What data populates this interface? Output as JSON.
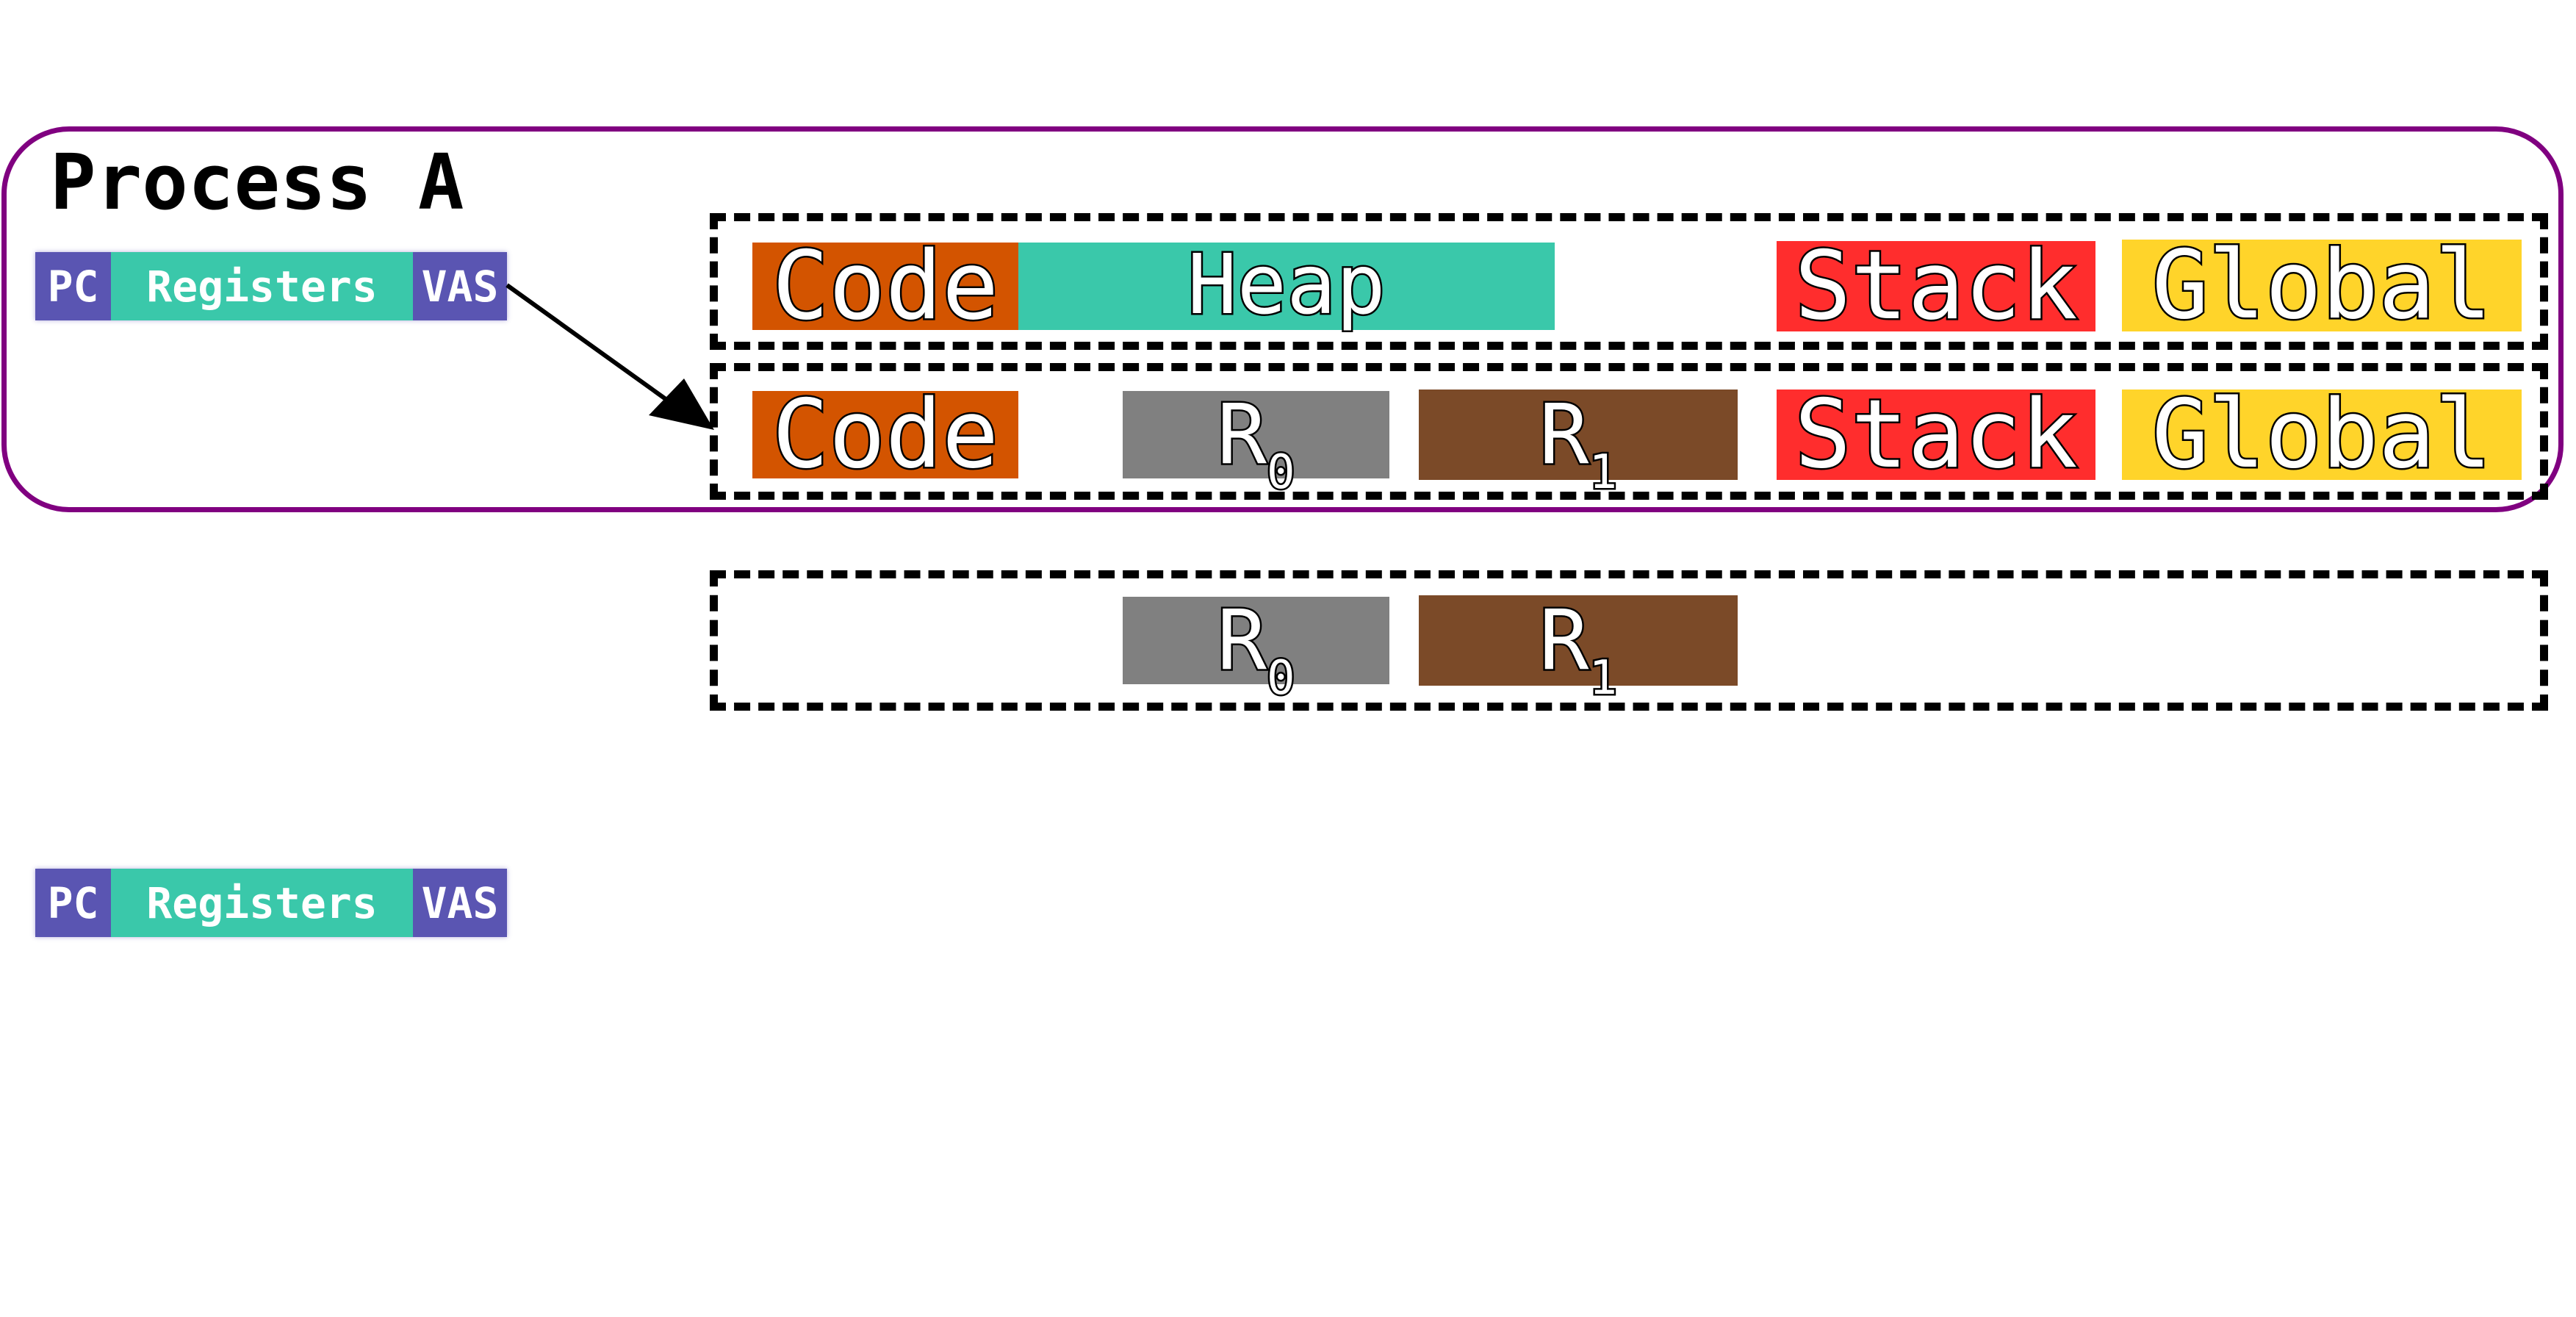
{
  "process": {
    "title": "Process A"
  },
  "context_labels": {
    "pc": "PC",
    "registers": "Registers",
    "vas": "VAS"
  },
  "rows": {
    "row1": {
      "code": "Code",
      "heap": "Heap",
      "stack": "Stack",
      "global": "Global"
    },
    "row2": {
      "code": "Code",
      "r0": {
        "base": "R",
        "sub": "0"
      },
      "r1": {
        "base": "R",
        "sub": "1"
      },
      "stack": "Stack",
      "global": "Global"
    },
    "row3": {
      "r0": {
        "base": "R",
        "sub": "0"
      },
      "r1": {
        "base": "R",
        "sub": "1"
      }
    }
  },
  "colors": {
    "process_border": "#800080",
    "code": "#d35400",
    "heap": "#3ac8aa",
    "stack": "#ff2d2d",
    "global": "#ffd42a",
    "r0": "#808080",
    "r1": "#7b4a28",
    "pc_vas": "#5a55b2",
    "registers": "#3ac8aa"
  }
}
